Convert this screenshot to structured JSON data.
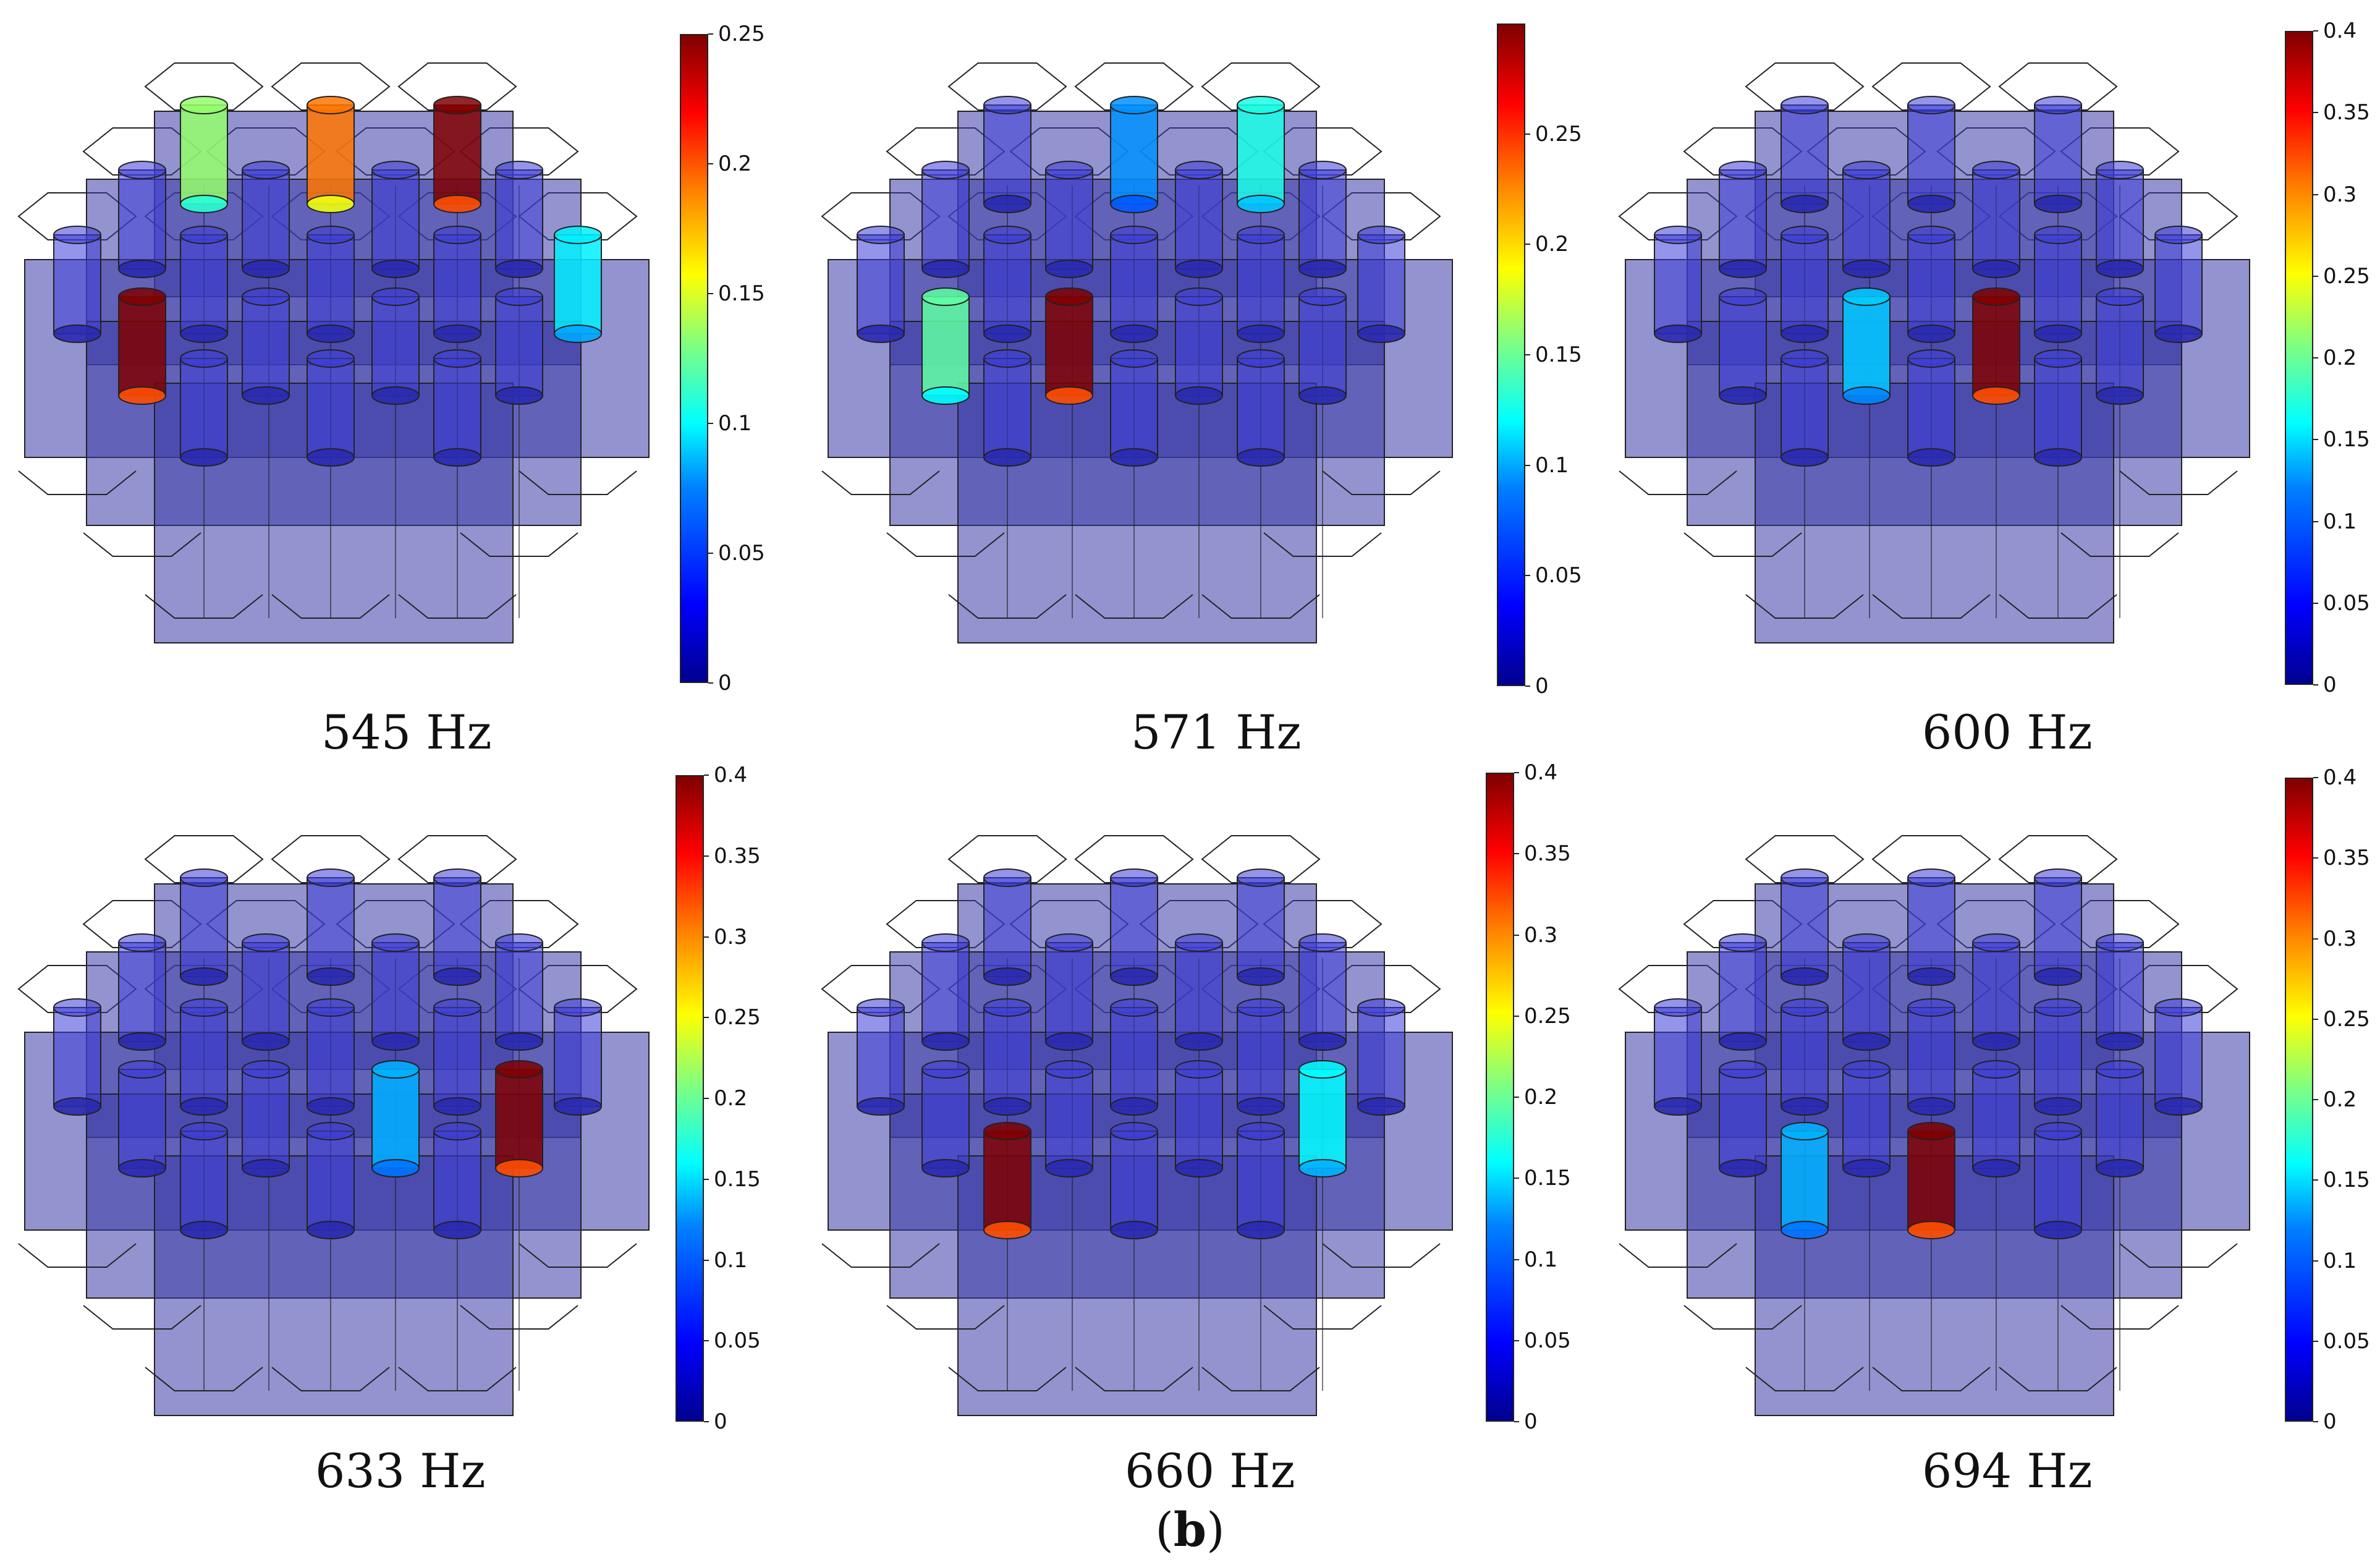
{
  "figure": {
    "caption_open": "(",
    "caption_label": "b",
    "caption_close": ")"
  },
  "colormap": {
    "stops": [
      "#00008f",
      "#0000ff",
      "#0080ff",
      "#00ffff",
      "#80ff80",
      "#ffff00",
      "#ff8000",
      "#ff0000",
      "#800000"
    ],
    "body_fill": "#3a3aa8",
    "edge_color": "#222222"
  },
  "panels": [
    {
      "frequency_label": "545 Hz",
      "colorbar_ticks": [
        "0",
        "0.05",
        "0.1",
        "0.15",
        "0.2",
        "0.25"
      ],
      "colorbar_max": 0.25,
      "tick_values": [
        0,
        0.05,
        0.1,
        0.15,
        0.2,
        0.25
      ],
      "highlighted_cavities": [
        {
          "cavity": "top-left",
          "level": 0.13
        },
        {
          "cavity": "top-middle",
          "level": 0.19
        },
        {
          "cavity": "top-right",
          "level": 0.25
        },
        {
          "cavity": "left-mid",
          "level": 0.25
        },
        {
          "cavity": "right-upper",
          "level": 0.09
        }
      ]
    },
    {
      "frequency_label": "571 Hz",
      "colorbar_ticks": [
        "0",
        "0.05",
        "0.1",
        "0.15",
        "0.2",
        "0.25"
      ],
      "colorbar_max": 0.3,
      "tick_values": [
        0,
        0.05,
        0.1,
        0.15,
        0.2,
        0.25
      ],
      "highlighted_cavities": [
        {
          "cavity": "top-middle",
          "level": 0.08
        },
        {
          "cavity": "top-right",
          "level": 0.12
        },
        {
          "cavity": "left-mid",
          "level": 0.14
        },
        {
          "cavity": "center-left-mid",
          "level": 0.3
        }
      ]
    },
    {
      "frequency_label": "600 Hz",
      "colorbar_ticks": [
        "0",
        "0.05",
        "0.1",
        "0.15",
        "0.2",
        "0.25",
        "0.3",
        "0.35",
        "0.4"
      ],
      "colorbar_max": 0.4,
      "tick_values": [
        0,
        0.05,
        0.1,
        0.15,
        0.2,
        0.25,
        0.3,
        0.35,
        0.4
      ],
      "highlighted_cavities": [
        {
          "cavity": "center-mid",
          "level": 0.13
        },
        {
          "cavity": "right-mid",
          "level": 0.4
        }
      ]
    },
    {
      "frequency_label": "633 Hz",
      "colorbar_ticks": [
        "0",
        "0.05",
        "0.1",
        "0.15",
        "0.2",
        "0.25",
        "0.3",
        "0.35",
        "0.4"
      ],
      "colorbar_max": 0.4,
      "tick_values": [
        0,
        0.05,
        0.1,
        0.15,
        0.2,
        0.25,
        0.3,
        0.35,
        0.4
      ],
      "highlighted_cavities": [
        {
          "cavity": "mid-right-inner",
          "level": 0.12
        },
        {
          "cavity": "mid-right-outer",
          "level": 0.4
        }
      ]
    },
    {
      "frequency_label": "660 Hz",
      "colorbar_ticks": [
        "0",
        "0.05",
        "0.1",
        "0.15",
        "0.2",
        "0.25",
        "0.3",
        "0.35",
        "0.4"
      ],
      "colorbar_max": 0.4,
      "tick_values": [
        0,
        0.05,
        0.1,
        0.15,
        0.2,
        0.25,
        0.3,
        0.35,
        0.4
      ],
      "highlighted_cavities": [
        {
          "cavity": "mid-right-outer",
          "level": 0.15
        },
        {
          "cavity": "lower-left",
          "level": 0.4
        }
      ]
    },
    {
      "frequency_label": "694 Hz",
      "colorbar_ticks": [
        "0",
        "0.05",
        "0.1",
        "0.15",
        "0.2",
        "0.25",
        "0.3",
        "0.35",
        "0.4"
      ],
      "colorbar_max": 0.4,
      "tick_values": [
        0,
        0.05,
        0.1,
        0.15,
        0.2,
        0.25,
        0.3,
        0.35,
        0.4
      ],
      "highlighted_cavities": [
        {
          "cavity": "lower-left",
          "level": 0.12
        },
        {
          "cavity": "lower-middle",
          "level": 0.4
        }
      ]
    }
  ]
}
